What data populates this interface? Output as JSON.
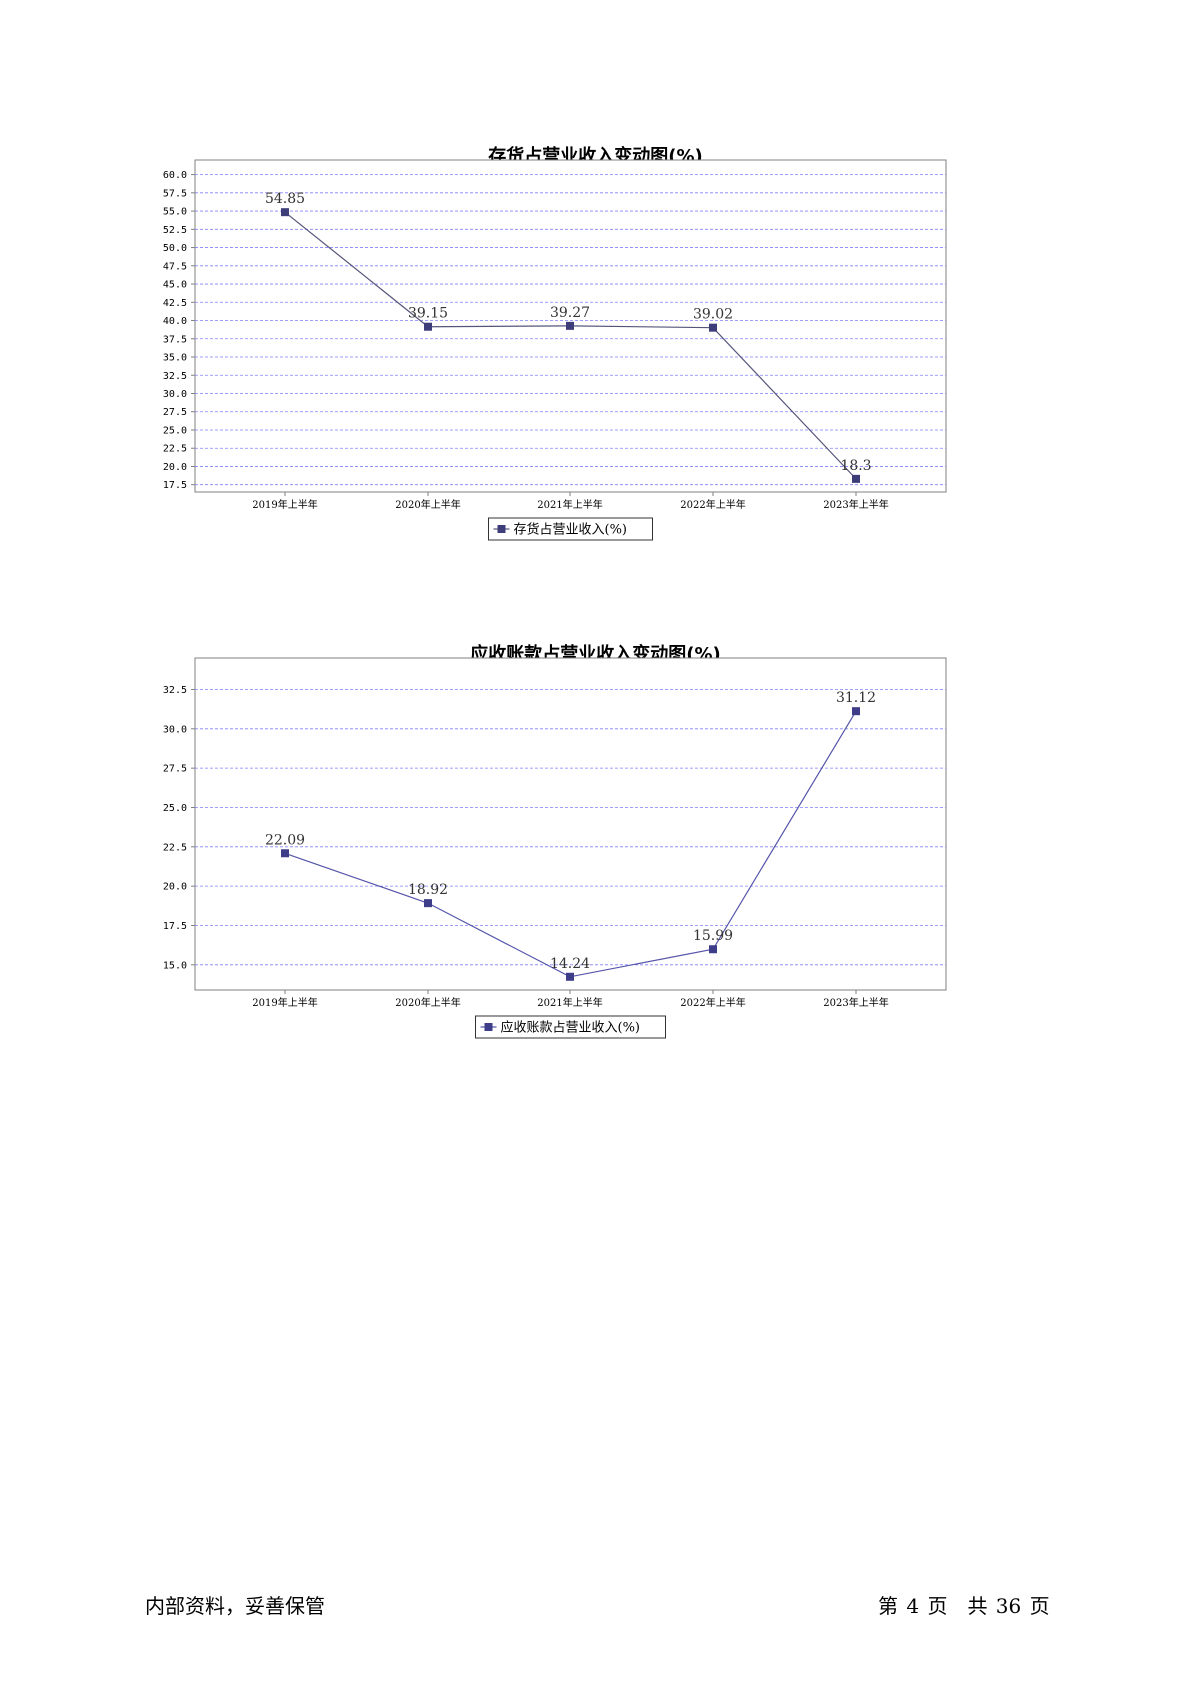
{
  "chart_data": [
    {
      "type": "line",
      "title": "存货占营业收入变动图(%)",
      "categories": [
        "2019年上半年",
        "2020年上半年",
        "2021年上半年",
        "2022年上半年",
        "2023年上半年"
      ],
      "series": [
        {
          "name": "存货占营业收入(%)",
          "values": [
            54.85,
            39.15,
            39.27,
            39.02,
            18.3
          ],
          "labels": [
            "54.85",
            "39.15",
            "39.27",
            "39.02",
            "18.3"
          ]
        }
      ],
      "yticks": [
        "17.5",
        "20.0",
        "22.5",
        "25.0",
        "27.5",
        "30.0",
        "32.5",
        "35.0",
        "37.5",
        "40.0",
        "42.5",
        "45.0",
        "47.5",
        "50.0",
        "52.5",
        "55.0",
        "57.5",
        "60.0"
      ],
      "ylim": [
        16.5,
        62.0
      ],
      "grid": true,
      "legend_position": "bottom-center",
      "line_color": "#55557a",
      "marker_color": "#3d3d7a",
      "grid_color": "#8080ff"
    },
    {
      "type": "line",
      "title": "应收账款占营业收入变动图(%)",
      "categories": [
        "2019年上半年",
        "2020年上半年",
        "2021年上半年",
        "2022年上半年",
        "2023年上半年"
      ],
      "series": [
        {
          "name": "应收账款占营业收入(%)",
          "values": [
            22.09,
            18.92,
            14.24,
            15.99,
            31.12
          ],
          "labels": [
            "22.09",
            "18.92",
            "14.24",
            "15.99",
            "31.12"
          ]
        }
      ],
      "yticks": [
        "15.0",
        "17.5",
        "20.0",
        "22.5",
        "25.0",
        "27.5",
        "30.0",
        "32.5"
      ],
      "ylim": [
        13.4,
        34.5
      ],
      "grid": true,
      "legend_position": "bottom-center",
      "line_color": "#5555aa",
      "marker_color": "#3d3d8a",
      "grid_color": "#8080ff"
    }
  ],
  "footer": {
    "left": "内部资料，妥善保管",
    "right": "第 4 页　共 36 页"
  }
}
